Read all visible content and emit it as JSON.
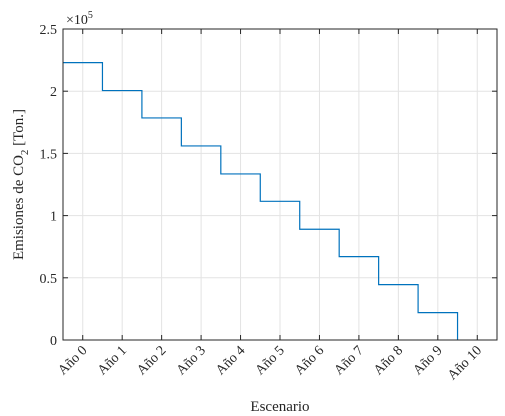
{
  "chart_data": {
    "type": "line",
    "step": true,
    "categories": [
      "Año 0",
      "Año 1",
      "Año 2",
      "Año 3",
      "Año 4",
      "Año 5",
      "Año 6",
      "Año 7",
      "Año 8",
      "Año 9",
      "Año 10"
    ],
    "x": [
      0,
      1,
      2,
      3,
      4,
      5,
      6,
      7,
      8,
      9,
      10
    ],
    "series": [
      {
        "values": [
          2.23,
          2.005,
          1.785,
          1.56,
          1.335,
          1.115,
          0.89,
          0.67,
          0.445,
          0.22,
          0.0
        ],
        "color": "#0072BD"
      }
    ],
    "xlim": [
      -0.5,
      10.5
    ],
    "ylim": [
      0,
      2.5
    ],
    "y_ticks": [
      0,
      0.5,
      1,
      1.5,
      2,
      2.5
    ],
    "y_tick_labels": [
      "0",
      "0.5",
      "1",
      "1.5",
      "2",
      "2.5"
    ],
    "y_exponent": {
      "base": "×10",
      "power": "5"
    },
    "xlabel": "Escenario",
    "ylabel": {
      "main": "Emisiones de CO",
      "sub": "2",
      "unit": " [Ton.]"
    },
    "grid": true,
    "box": true
  }
}
